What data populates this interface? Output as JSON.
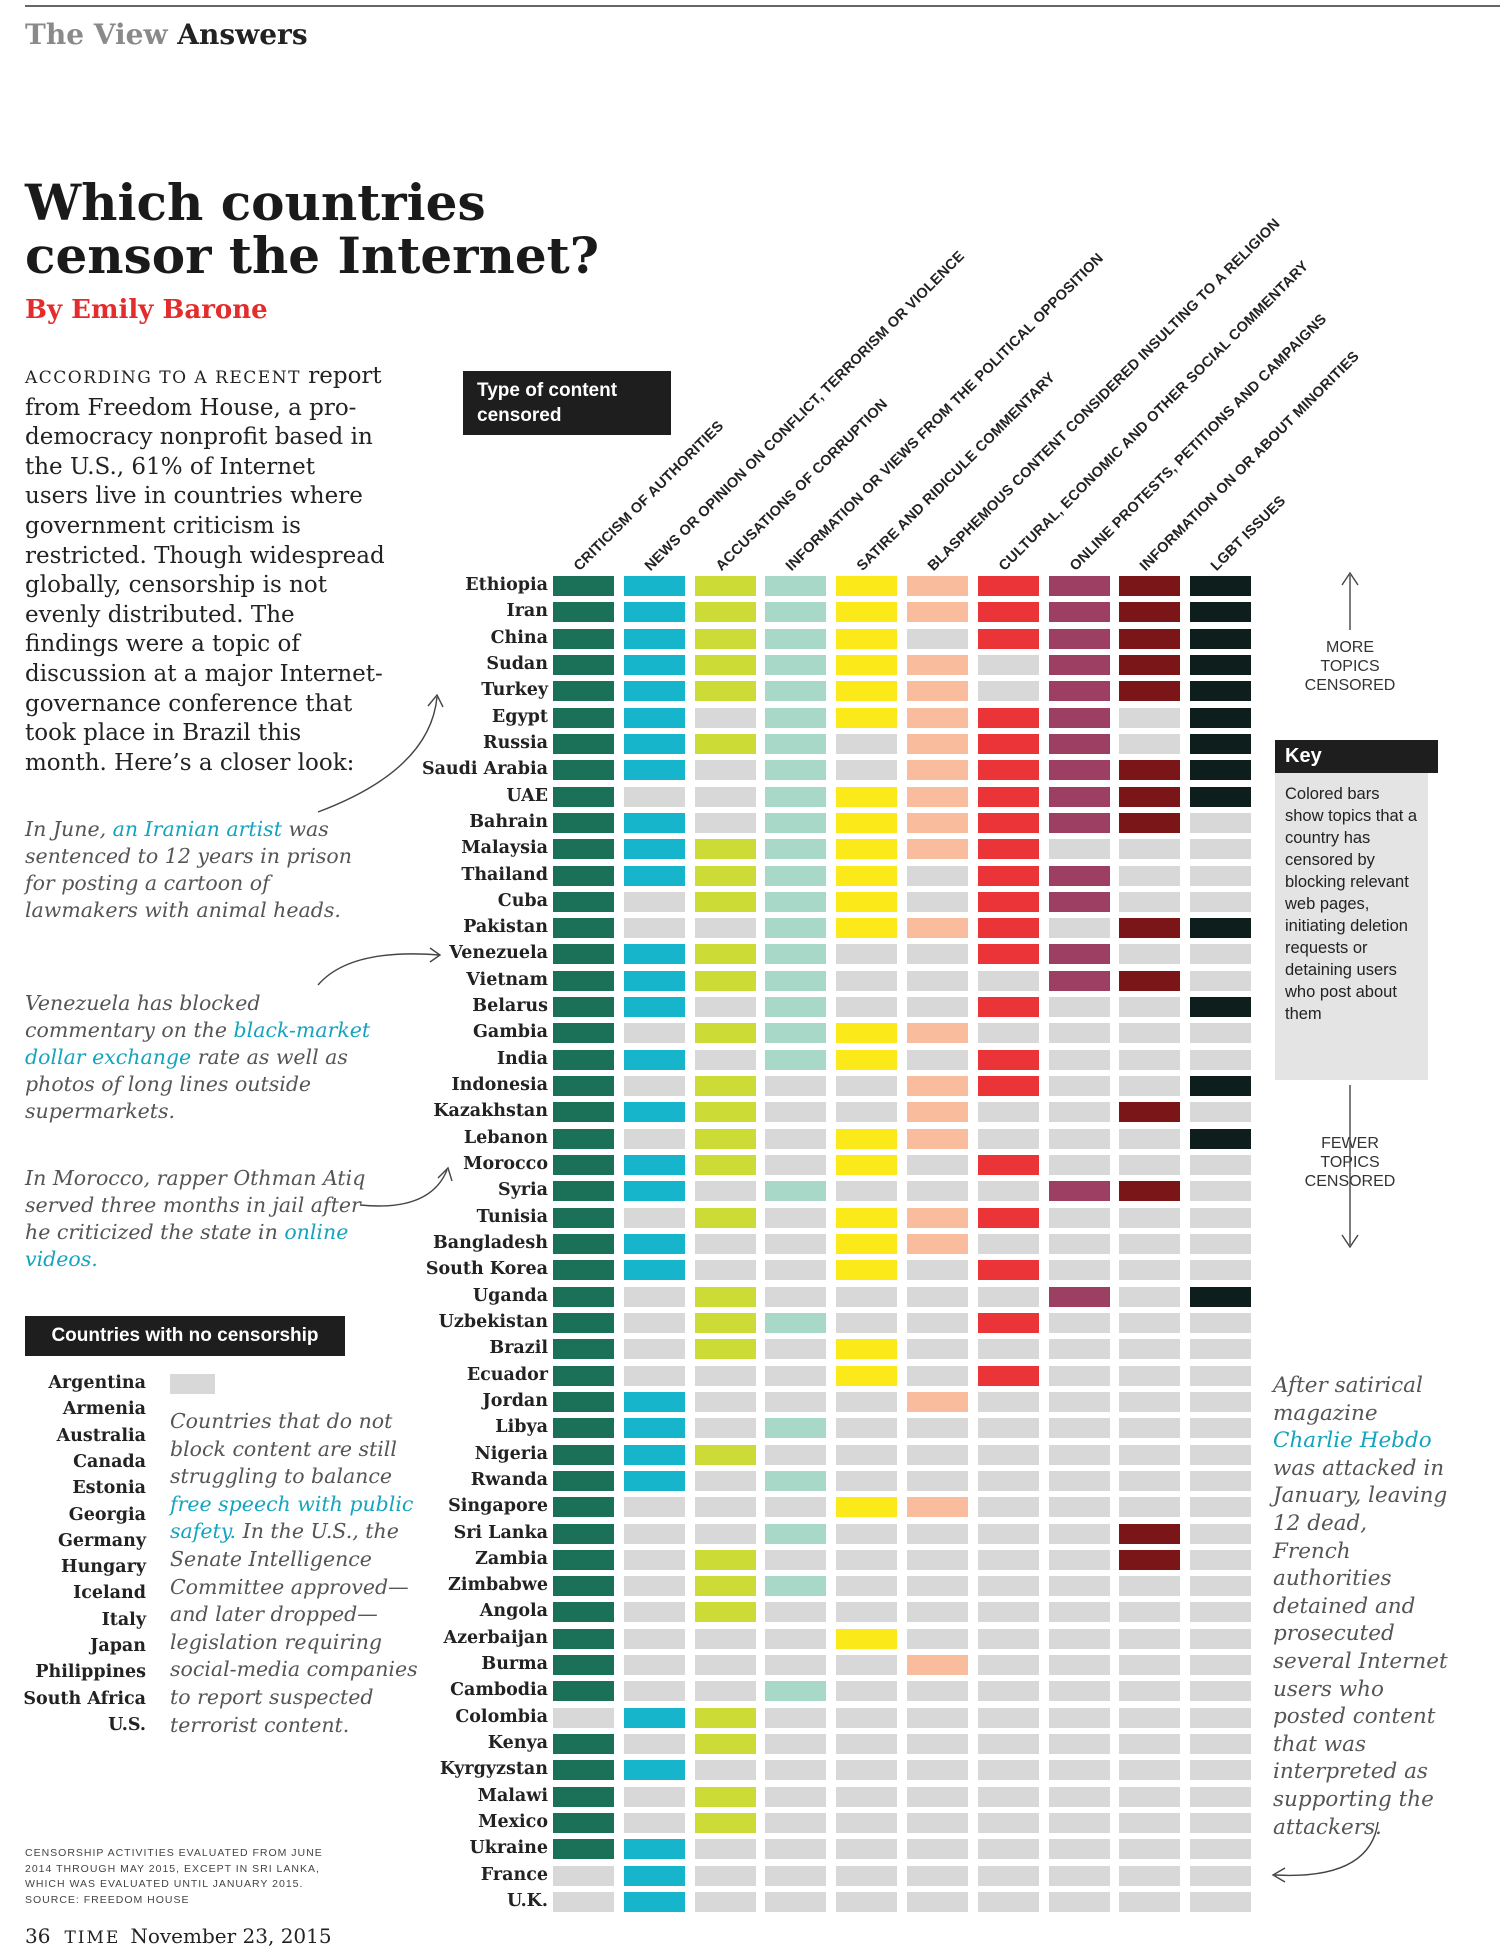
{
  "header": {
    "section": "The View",
    "subsection": "Answers"
  },
  "title": "Which countries\ncensor the Internet?",
  "byline": "By Emily Barone",
  "intro": {
    "lead": "According to a recent",
    "body": "report from Freedom House, a pro-democracy nonprofit based in the U.S., 61% of Internet users live in countries where government criticism is restricted. Though widespread globally, censorship is not evenly distributed. The findings were a topic of discussion at a major Internet-governance conference that took place in Brazil this month. Here’s a closer look:"
  },
  "notes": {
    "iran": {
      "pre": "In June, ",
      "highlight": "an Iranian artist",
      "post": " was sentenced to 12 years in prison for posting a cartoon of lawmakers with animal heads."
    },
    "venezuela": {
      "pre": "Venezuela has blocked commentary on the ",
      "highlight": "black-market dollar exchange",
      "post": " rate as well as photos of long lines outside supermarkets."
    },
    "morocco": {
      "pre": "In Morocco, rapper Othman Atiq served three months in jail after he criticized the state in ",
      "highlight": "online videos.",
      "post": ""
    },
    "charlie": {
      "pre": "After satirical magazine ",
      "highlight": "Charlie Hebdo",
      "post": " was attacked in January, leaving 12 dead, French authorities detained and prosecuted several Internet users who posted content that was interpreted as supporting the attackers."
    }
  },
  "type_box": "Type of content\ncensored",
  "key": {
    "title": "Key",
    "body": "Colored bars show topics that a country has censored by blocking relevant web pages, initiating deletion requests or detaining users who post about them"
  },
  "scale": {
    "more": "MORE\nTOPICS\nCENSORED",
    "fewer": "FEWER\nTOPICS\nCENSORED"
  },
  "no_censorship": {
    "title": "Countries with no censorship",
    "countries": [
      "Argentina",
      "Armenia",
      "Australia",
      "Canada",
      "Estonia",
      "Georgia",
      "Germany",
      "Hungary",
      "Iceland",
      "Italy",
      "Japan",
      "Philippines",
      "South Africa",
      "U.S."
    ],
    "note_pre": "Countries that do not block content are still struggling to balance ",
    "note_highlight": "free speech with public safety.",
    "note_post": " In the U.S., the Senate Intelligence Committee approved—and later dropped—legislation requiring social-media companies to report suspected terrorist content."
  },
  "footnote": "CENSORSHIP ACTIVITIES EVALUATED FROM JUNE\n2014 THROUGH MAY 2015, EXCEPT IN SRI LANKA,\nWHICH WAS EVALUATED UNTIL JANUARY 2015.\nSOURCE: FREEDOM HOUSE",
  "folio": {
    "page": "36",
    "magazine": "TIME",
    "date": "November 23, 2015"
  },
  "chart_data": {
    "type": "heatmap",
    "off_color": "#d8d8d8",
    "categories": [
      {
        "label": "CRITICISM OF AUTHORITIES",
        "color": "#1b7158"
      },
      {
        "label": "NEWS OR OPINION ON CONFLICT, TERRORISM OR VIOLENCE",
        "color": "#16b5cc"
      },
      {
        "label": "ACCUSATIONS OF CORRUPTION",
        "color": "#cddb37"
      },
      {
        "label": "INFORMATION OR VIEWS FROM THE POLITICAL OPPOSITION",
        "color": "#a8d8c8"
      },
      {
        "label": "SATIRE AND RIDICULE COMMENTARY",
        "color": "#fbe91a"
      },
      {
        "label": "BLASPHEMOUS CONTENT CONSIDERED INSULTING TO A RELIGION",
        "color": "#f9bc9c"
      },
      {
        "label": "CULTURAL, ECONOMIC AND OTHER SOCIAL COMMENTARY",
        "color": "#ea3438"
      },
      {
        "label": "ONLINE PROTESTS, PETITIONS AND CAMPAIGNS",
        "color": "#9c3f62"
      },
      {
        "label": "INFORMATION ON OR ABOUT MINORITIES",
        "color": "#7a1518"
      },
      {
        "label": "LGBT ISSUES",
        "color": "#0e1e1c"
      }
    ],
    "countries": [
      "Ethiopia",
      "Iran",
      "China",
      "Sudan",
      "Turkey",
      "Egypt",
      "Russia",
      "Saudi Arabia",
      "UAE",
      "Bahrain",
      "Malaysia",
      "Thailand",
      "Cuba",
      "Pakistan",
      "Venezuela",
      "Vietnam",
      "Belarus",
      "Gambia",
      "India",
      "Indonesia",
      "Kazakhstan",
      "Lebanon",
      "Morocco",
      "Syria",
      "Tunisia",
      "Bangladesh",
      "South Korea",
      "Uganda",
      "Uzbekistan",
      "Brazil",
      "Ecuador",
      "Jordan",
      "Libya",
      "Nigeria",
      "Rwanda",
      "Singapore",
      "Sri Lanka",
      "Zambia",
      "Zimbabwe",
      "Angola",
      "Azerbaijan",
      "Burma",
      "Cambodia",
      "Colombia",
      "Kenya",
      "Kyrgyzstan",
      "Malawi",
      "Mexico",
      "Ukraine",
      "France",
      "U.K."
    ],
    "matrix": [
      [
        1,
        1,
        1,
        1,
        1,
        1,
        1,
        1,
        1,
        1
      ],
      [
        1,
        1,
        1,
        1,
        1,
        1,
        1,
        1,
        1,
        1
      ],
      [
        1,
        1,
        1,
        1,
        1,
        0,
        1,
        1,
        1,
        1
      ],
      [
        1,
        1,
        1,
        1,
        1,
        1,
        0,
        1,
        1,
        1
      ],
      [
        1,
        1,
        1,
        1,
        1,
        1,
        0,
        1,
        1,
        1
      ],
      [
        1,
        1,
        0,
        1,
        1,
        1,
        1,
        1,
        0,
        1
      ],
      [
        1,
        1,
        1,
        1,
        0,
        1,
        1,
        1,
        0,
        1
      ],
      [
        1,
        1,
        0,
        1,
        0,
        1,
        1,
        1,
        1,
        1
      ],
      [
        1,
        0,
        0,
        1,
        1,
        1,
        1,
        1,
        1,
        1
      ],
      [
        1,
        1,
        0,
        1,
        1,
        1,
        1,
        1,
        1,
        0
      ],
      [
        1,
        1,
        1,
        1,
        1,
        1,
        1,
        0,
        0,
        0
      ],
      [
        1,
        1,
        1,
        1,
        1,
        0,
        1,
        1,
        0,
        0
      ],
      [
        1,
        0,
        1,
        1,
        1,
        0,
        1,
        1,
        0,
        0
      ],
      [
        1,
        0,
        0,
        1,
        1,
        1,
        1,
        0,
        1,
        1
      ],
      [
        1,
        1,
        1,
        1,
        0,
        0,
        1,
        1,
        0,
        0
      ],
      [
        1,
        1,
        1,
        1,
        0,
        0,
        0,
        1,
        1,
        0
      ],
      [
        1,
        1,
        0,
        1,
        0,
        0,
        1,
        0,
        0,
        1
      ],
      [
        1,
        0,
        1,
        1,
        1,
        1,
        0,
        0,
        0,
        0
      ],
      [
        1,
        1,
        0,
        1,
        1,
        0,
        1,
        0,
        0,
        0
      ],
      [
        1,
        0,
        1,
        0,
        0,
        1,
        1,
        0,
        0,
        1
      ],
      [
        1,
        1,
        1,
        0,
        0,
        1,
        0,
        0,
        1,
        0
      ],
      [
        1,
        0,
        1,
        0,
        1,
        1,
        0,
        0,
        0,
        1
      ],
      [
        1,
        1,
        1,
        0,
        1,
        0,
        1,
        0,
        0,
        0
      ],
      [
        1,
        1,
        0,
        1,
        0,
        0,
        0,
        1,
        1,
        0
      ],
      [
        1,
        0,
        1,
        0,
        1,
        1,
        1,
        0,
        0,
        0
      ],
      [
        1,
        1,
        0,
        0,
        1,
        1,
        0,
        0,
        0,
        0
      ],
      [
        1,
        1,
        0,
        0,
        1,
        0,
        1,
        0,
        0,
        0
      ],
      [
        1,
        0,
        1,
        0,
        0,
        0,
        0,
        1,
        0,
        1
      ],
      [
        1,
        0,
        1,
        1,
        0,
        0,
        1,
        0,
        0,
        0
      ],
      [
        1,
        0,
        1,
        0,
        1,
        0,
        0,
        0,
        0,
        0
      ],
      [
        1,
        0,
        0,
        0,
        1,
        0,
        1,
        0,
        0,
        0
      ],
      [
        1,
        1,
        0,
        0,
        0,
        1,
        0,
        0,
        0,
        0
      ],
      [
        1,
        1,
        0,
        1,
        0,
        0,
        0,
        0,
        0,
        0
      ],
      [
        1,
        1,
        1,
        0,
        0,
        0,
        0,
        0,
        0,
        0
      ],
      [
        1,
        1,
        0,
        1,
        0,
        0,
        0,
        0,
        0,
        0
      ],
      [
        1,
        0,
        0,
        0,
        1,
        1,
        0,
        0,
        0,
        0
      ],
      [
        1,
        0,
        0,
        1,
        0,
        0,
        0,
        0,
        1,
        0
      ],
      [
        1,
        0,
        1,
        0,
        0,
        0,
        0,
        0,
        1,
        0
      ],
      [
        1,
        0,
        1,
        1,
        0,
        0,
        0,
        0,
        0,
        0
      ],
      [
        1,
        0,
        1,
        0,
        0,
        0,
        0,
        0,
        0,
        0
      ],
      [
        1,
        0,
        0,
        0,
        1,
        0,
        0,
        0,
        0,
        0
      ],
      [
        1,
        0,
        0,
        0,
        0,
        1,
        0,
        0,
        0,
        0
      ],
      [
        1,
        0,
        0,
        1,
        0,
        0,
        0,
        0,
        0,
        0
      ],
      [
        0,
        1,
        1,
        0,
        0,
        0,
        0,
        0,
        0,
        0
      ],
      [
        1,
        0,
        1,
        0,
        0,
        0,
        0,
        0,
        0,
        0
      ],
      [
        1,
        1,
        0,
        0,
        0,
        0,
        0,
        0,
        0,
        0
      ],
      [
        1,
        0,
        1,
        0,
        0,
        0,
        0,
        0,
        0,
        0
      ],
      [
        1,
        0,
        1,
        0,
        0,
        0,
        0,
        0,
        0,
        0
      ],
      [
        1,
        1,
        0,
        0,
        0,
        0,
        0,
        0,
        0,
        0
      ],
      [
        0,
        1,
        0,
        0,
        0,
        0,
        0,
        0,
        0,
        0
      ],
      [
        0,
        1,
        0,
        0,
        0,
        0,
        0,
        0,
        0,
        0
      ]
    ]
  }
}
